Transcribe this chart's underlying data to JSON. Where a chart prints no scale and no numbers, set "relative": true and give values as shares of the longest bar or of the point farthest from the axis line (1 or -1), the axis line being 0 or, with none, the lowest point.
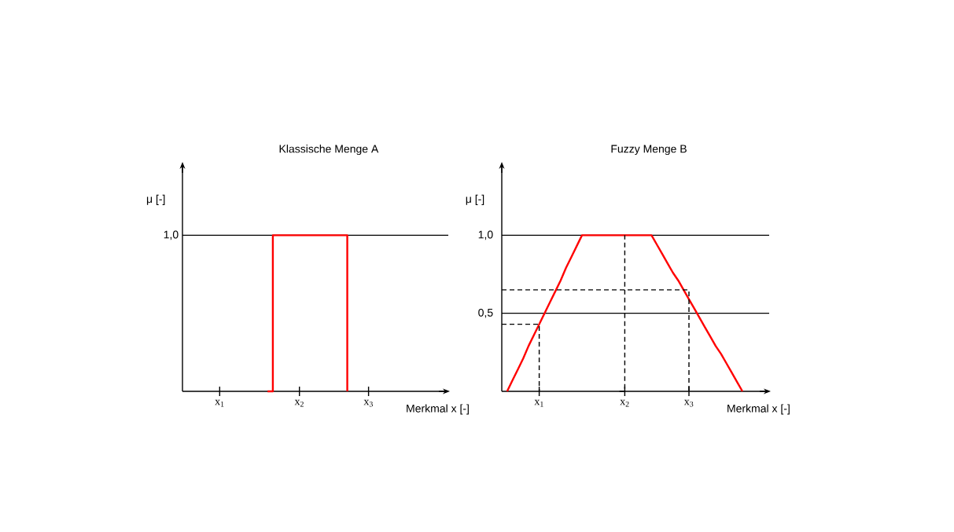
{
  "chart_data": [
    {
      "type": "line",
      "title": "Klassische Menge A",
      "xlabel": "Merkmal x [-]",
      "ylabel": "μ [-]",
      "relative": true,
      "categories": [
        null,
        null,
        null,
        null,
        null,
        null,
        null,
        "x$_{1}$",
        null,
        null,
        null,
        null,
        null,
        null,
        null,
        null,
        null,
        null,
        null,
        null,
        null,
        null,
        "x$_{2}$",
        null,
        null,
        null,
        null,
        null,
        null,
        null,
        null,
        null,
        null,
        null,
        null,
        "x$_{3}$",
        null,
        null,
        null,
        null,
        null,
        null,
        null,
        null,
        null,
        null,
        null,
        null,
        null,
        null,
        null
      ],
      "series": [
        {
          "type": "step",
          "color": "#ff0000",
          "values": [
            null,
            null,
            null,
            null,
            null,
            null,
            null,
            null,
            null,
            null,
            null,
            null,
            null,
            null,
            null,
            null,
            0,
            1,
            1,
            1,
            1,
            1,
            1,
            1,
            1,
            1,
            1,
            1,
            1,
            1,
            1,
            0,
            null,
            null,
            null,
            null,
            null,
            null,
            null,
            null,
            null,
            null,
            null,
            null,
            null,
            null,
            null,
            null,
            null,
            null,
            null
          ]
        }
      ],
      "ref_lines": [
        {
          "axis": "y",
          "value": 1,
          "label": "1,0",
          "color": "#000000"
        }
      ],
      "marker": "none"
    },
    {
      "type": "line",
      "title": "Fuzzy Menge B",
      "xlabel": "Merkmal x [-]",
      "ylabel": "μ [-]",
      "ylim": [
        0,
        1.46
      ],
      "categories": [
        null,
        null,
        null,
        null,
        null,
        null,
        null,
        "x$_{1}$",
        null,
        null,
        null,
        null,
        null,
        null,
        null,
        null,
        null,
        null,
        null,
        null,
        null,
        null,
        null,
        "x$_{2}$",
        null,
        null,
        null,
        null,
        null,
        null,
        null,
        null,
        null,
        null,
        null,
        "x$_{3}$",
        null,
        null,
        null,
        null,
        null,
        null,
        null,
        null,
        null,
        null,
        null,
        null,
        null,
        null,
        null
      ],
      "yticks": [
        {
          "value": 0.5,
          "label": "0,5"
        },
        {
          "value": 1,
          "label": "1,0"
        }
      ],
      "grid": "y",
      "series": [
        {
          "color": "#ff0000",
          "values": [
            null,
            0,
            0.07,
            0.14,
            0.21,
            0.29,
            0.36,
            0.43,
            0.5,
            0.57,
            0.64,
            0.71,
            0.79,
            0.86,
            0.93,
            1,
            1,
            1,
            1,
            1,
            1,
            1,
            1,
            1,
            1,
            1,
            1,
            1,
            1,
            0.94,
            0.88,
            0.82,
            0.76,
            0.71,
            0.65,
            0.59,
            0.53,
            0.47,
            0.41,
            0.35,
            0.29,
            0.24,
            0.18,
            0.12,
            0.06,
            0,
            null,
            null,
            null,
            null,
            null
          ]
        },
        {
          "type": "step",
          "color": "#000000",
          "line_style": "dashed",
          "values": [
            0.43,
            0.43,
            0.43,
            0.43,
            0.43,
            0.43,
            0.43,
            0,
            null,
            null,
            null,
            null,
            null,
            null,
            null,
            null,
            null,
            null,
            null,
            null,
            null,
            null,
            null,
            null,
            null,
            null,
            null,
            null,
            null,
            null,
            null,
            null,
            null,
            null,
            null,
            null,
            null,
            null,
            null,
            null,
            null,
            null,
            null,
            null,
            null,
            null,
            null,
            null,
            null,
            null,
            null
          ]
        },
        {
          "type": "step",
          "color": "#000000",
          "line_style": "dashed",
          "values": [
            null,
            null,
            null,
            null,
            null,
            null,
            null,
            null,
            null,
            null,
            null,
            null,
            null,
            null,
            null,
            null,
            null,
            null,
            null,
            null,
            null,
            null,
            0,
            1,
            null,
            null,
            null,
            null,
            null,
            null,
            null,
            null,
            null,
            null,
            null,
            null,
            null,
            null,
            null,
            null,
            null,
            null,
            null,
            null,
            null,
            null,
            null,
            null,
            null,
            null,
            null
          ]
        },
        {
          "type": "step",
          "color": "#000000",
          "line_style": "dashed",
          "values": [
            0.65,
            0.65,
            0.65,
            0.65,
            0.65,
            0.65,
            0.65,
            0.65,
            0.65,
            0.65,
            0.65,
            0.65,
            0.65,
            0.65,
            0.65,
            0.65,
            0.65,
            0.65,
            0.65,
            0.65,
            0.65,
            0.65,
            0.65,
            0.65,
            0.65,
            0.65,
            0.65,
            0.65,
            0.65,
            0.65,
            0.65,
            0.65,
            0.65,
            0.65,
            0.65,
            0,
            null,
            null,
            null,
            null,
            null,
            null,
            null,
            null,
            null,
            null,
            null,
            null,
            null,
            null,
            null
          ]
        }
      ],
      "marker": "none"
    }
  ]
}
